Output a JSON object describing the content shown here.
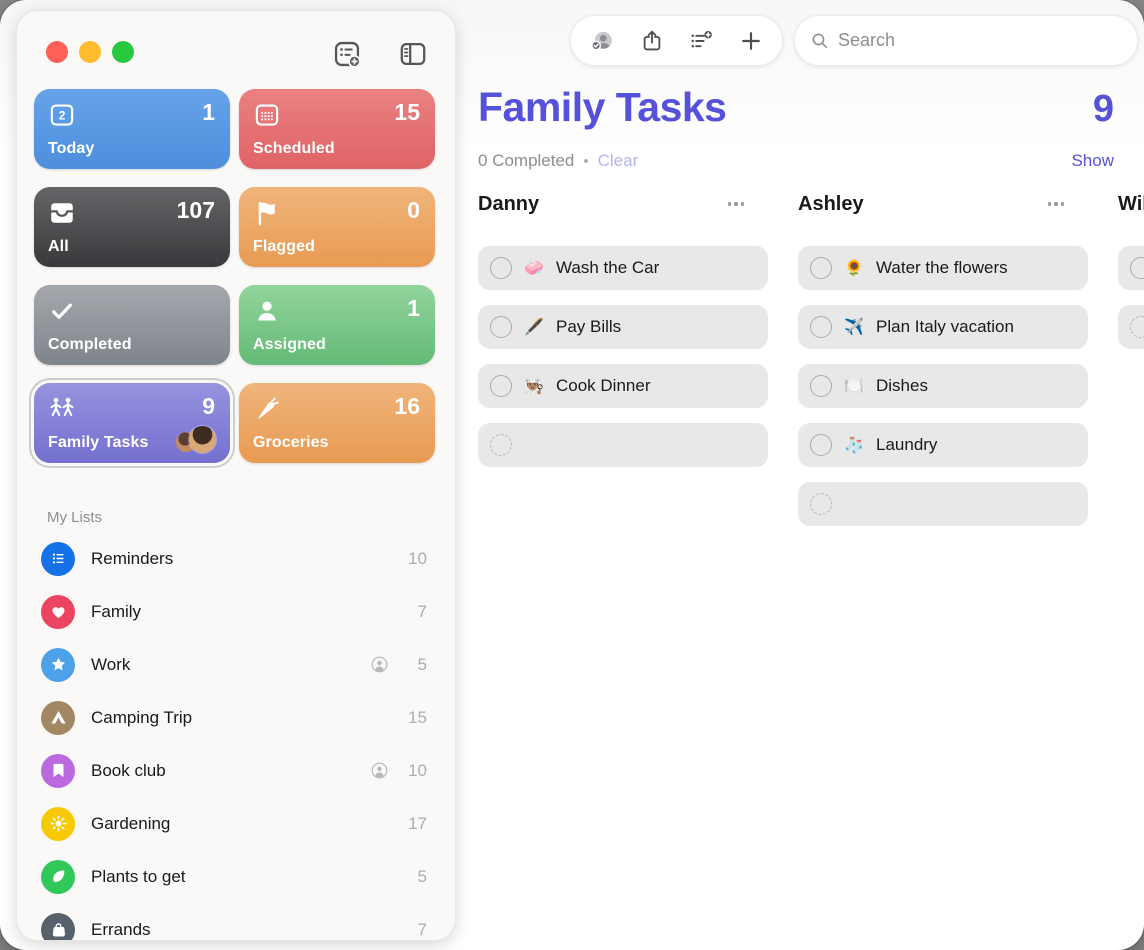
{
  "window": {
    "traffic_lights": [
      {
        "id": "close",
        "color": "#FF5F57"
      },
      {
        "id": "minimize",
        "color": "#FEBC2E"
      },
      {
        "id": "zoom",
        "color": "#28C840"
      }
    ]
  },
  "sidebar": {
    "my_lists_header": "My Lists",
    "smart_lists": [
      {
        "id": "today",
        "label": "Today",
        "count": "1",
        "icon": "calendar-today",
        "bg": [
          "#66A3EA",
          "#4E8EDC"
        ],
        "selected": false,
        "has_avatars": false
      },
      {
        "id": "scheduled",
        "label": "Scheduled",
        "count": "15",
        "icon": "calendar-grid",
        "bg": [
          "#EA8181",
          "#DF6366"
        ],
        "selected": false,
        "has_avatars": false
      },
      {
        "id": "all",
        "label": "All",
        "count": "107",
        "icon": "tray",
        "bg": [
          "#656568",
          "#39393C"
        ],
        "selected": false,
        "has_avatars": false
      },
      {
        "id": "flagged",
        "label": "Flagged",
        "count": "0",
        "icon": "flag",
        "bg": [
          "#F0B47B",
          "#E89B52"
        ],
        "selected": false,
        "has_avatars": false
      },
      {
        "id": "completed",
        "label": "Completed",
        "count": "",
        "icon": "checkmark",
        "bg": [
          "#A5A9AE",
          "#7F848B"
        ],
        "selected": false,
        "has_avatars": false
      },
      {
        "id": "assigned",
        "label": "Assigned",
        "count": "1",
        "icon": "person",
        "bg": [
          "#92D49D",
          "#64BA76"
        ],
        "selected": false,
        "has_avatars": false
      },
      {
        "id": "family-tasks",
        "label": "Family Tasks",
        "count": "9",
        "icon": "family",
        "bg": [
          "#9693DF",
          "#7470CF"
        ],
        "selected": true,
        "has_avatars": true
      },
      {
        "id": "groceries",
        "label": "Groceries",
        "count": "16",
        "icon": "carrot",
        "bg": [
          "#F0B47B",
          "#E89B52"
        ],
        "selected": false,
        "has_avatars": false
      }
    ],
    "my_lists": [
      {
        "id": "reminders",
        "label": "Reminders",
        "count": "10",
        "icon": "list-bullets",
        "color": "#1472E6",
        "shared": false
      },
      {
        "id": "family",
        "label": "Family",
        "count": "7",
        "icon": "heart",
        "color": "#EB4561",
        "shared": false
      },
      {
        "id": "work",
        "label": "Work",
        "count": "5",
        "icon": "star",
        "color": "#4CA1E8",
        "shared": true
      },
      {
        "id": "camping-trip",
        "label": "Camping Trip",
        "count": "15",
        "icon": "tent",
        "color": "#A28862",
        "shared": false
      },
      {
        "id": "book-club",
        "label": "Book club",
        "count": "10",
        "icon": "bookmark",
        "color": "#BA69DF",
        "shared": true
      },
      {
        "id": "gardening",
        "label": "Gardening",
        "count": "17",
        "icon": "sun",
        "color": "#F7C902",
        "shared": false
      },
      {
        "id": "plants-to-get",
        "label": "Plants to get",
        "count": "5",
        "icon": "leaf",
        "color": "#31C759",
        "shared": false
      },
      {
        "id": "errands",
        "label": "Errands",
        "count": "7",
        "icon": "bag",
        "color": "#57616C",
        "shared": false
      }
    ]
  },
  "toolbar": {
    "search_placeholder": "Search"
  },
  "main": {
    "title": "Family Tasks",
    "count": "9",
    "completed_summary": "0 Completed",
    "separator": "•",
    "clear_label": "Clear",
    "show_label": "Show",
    "columns": [
      {
        "name": "Danny",
        "tasks": [
          {
            "emoji": "🧼",
            "label": "Wash the Car"
          },
          {
            "emoji": "🖋️",
            "label": "Pay Bills"
          },
          {
            "emoji": "👨🏽‍🍳",
            "label": "Cook Dinner"
          }
        ]
      },
      {
        "name": "Ashley",
        "tasks": [
          {
            "emoji": "🌻",
            "label": "Water the flowers"
          },
          {
            "emoji": "✈️",
            "label": "Plan Italy vacation"
          },
          {
            "emoji": "🍽️",
            "label": "Dishes"
          },
          {
            "emoji": "🧦",
            "label": "Laundry"
          }
        ]
      },
      {
        "name": "Will",
        "tasks": [
          {
            "emoji": "",
            "label": ""
          }
        ]
      }
    ]
  },
  "colors": {
    "accent": "#5551D9",
    "clear_disabled": "#B7B5EE",
    "gray_text": "#8E8E93"
  }
}
